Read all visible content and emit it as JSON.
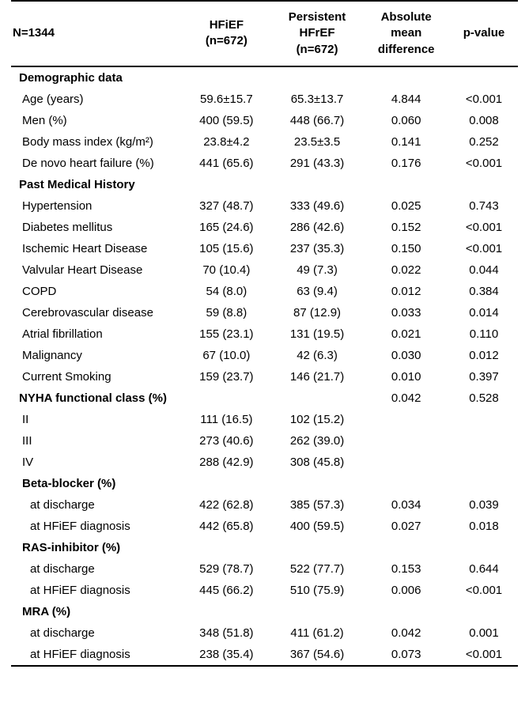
{
  "header": {
    "n_label": "N=1344",
    "col1": "HFiEF\n(n=672)",
    "col2": "Persistent\nHFrEF\n(n=672)",
    "col3": "Absolute\nmean\ndifference",
    "col4": "p-value"
  },
  "rows": [
    {
      "type": "section",
      "label": "Demographic data"
    },
    {
      "type": "data",
      "label": "Age (years)",
      "c1": "59.6±15.7",
      "c2": "65.3±13.7",
      "c3": "4.844",
      "c4": "<0.001"
    },
    {
      "type": "data",
      "label": "Men (%)",
      "c1": "400 (59.5)",
      "c2": "448 (66.7)",
      "c3": "0.060",
      "c4": "0.008"
    },
    {
      "type": "data",
      "label": "Body mass index (kg/m²)",
      "c1": "23.8±4.2",
      "c2": "23.5±3.5",
      "c3": "0.141",
      "c4": "0.252"
    },
    {
      "type": "data",
      "label": "De novo heart failure (%)",
      "c1": "441 (65.6)",
      "c2": "291 (43.3)",
      "c3": "0.176",
      "c4": "<0.001"
    },
    {
      "type": "section",
      "label": "Past Medical History"
    },
    {
      "type": "data",
      "label": "Hypertension",
      "c1": "327 (48.7)",
      "c2": "333 (49.6)",
      "c3": "0.025",
      "c4": "0.743"
    },
    {
      "type": "data",
      "label": "Diabetes mellitus",
      "c1": "165 (24.6)",
      "c2": "286 (42.6)",
      "c3": "0.152",
      "c4": "<0.001"
    },
    {
      "type": "data",
      "label": "Ischemic Heart Disease",
      "c1": "105 (15.6)",
      "c2": "237 (35.3)",
      "c3": "0.150",
      "c4": "<0.001"
    },
    {
      "type": "data",
      "label": "Valvular Heart Disease",
      "c1": "70 (10.4)",
      "c2": "49 (7.3)",
      "c3": "0.022",
      "c4": "0.044"
    },
    {
      "type": "data",
      "label": "COPD",
      "c1": "54 (8.0)",
      "c2": "63 (9.4)",
      "c3": "0.012",
      "c4": "0.384"
    },
    {
      "type": "data",
      "label": "Cerebrovascular disease",
      "c1": "59 (8.8)",
      "c2": "87 (12.9)",
      "c3": "0.033",
      "c4": "0.014"
    },
    {
      "type": "data",
      "label": "Atrial fibrillation",
      "c1": "155 (23.1)",
      "c2": "131 (19.5)",
      "c3": "0.021",
      "c4": "0.110"
    },
    {
      "type": "data",
      "label": "Malignancy",
      "c1": "67 (10.0)",
      "c2": "42 (6.3)",
      "c3": "0.030",
      "c4": "0.012"
    },
    {
      "type": "data",
      "label": "Current Smoking",
      "c1": "159 (23.7)",
      "c2": "146 (21.7)",
      "c3": "0.010",
      "c4": "0.397"
    },
    {
      "type": "section-data",
      "label": "NYHA functional class (%)",
      "c3": "0.042",
      "c4": "0.528"
    },
    {
      "type": "data",
      "label": "II",
      "c1": "111 (16.5)",
      "c2": "102 (15.2)",
      "c3": "",
      "c4": ""
    },
    {
      "type": "data",
      "label": "III",
      "c1": "273 (40.6)",
      "c2": "262 (39.0)",
      "c3": "",
      "c4": ""
    },
    {
      "type": "data",
      "label": "IV",
      "c1": "288 (42.9)",
      "c2": "308 (45.8)",
      "c3": "",
      "c4": ""
    },
    {
      "type": "section-sub",
      "label": "Beta-blocker (%)"
    },
    {
      "type": "data-indent",
      "label": "at discharge",
      "c1": "422 (62.8)",
      "c2": "385 (57.3)",
      "c3": "0.034",
      "c4": "0.039"
    },
    {
      "type": "data-indent",
      "label": "at HFiEF diagnosis",
      "c1": "442 (65.8)",
      "c2": "400 (59.5)",
      "c3": "0.027",
      "c4": "0.018"
    },
    {
      "type": "section-sub",
      "label": "RAS-inhibitor (%)"
    },
    {
      "type": "data-indent",
      "label": "at discharge",
      "c1": "529 (78.7)",
      "c2": "522 (77.7)",
      "c3": "0.153",
      "c4": "0.644"
    },
    {
      "type": "data-indent",
      "label": "at HFiEF diagnosis",
      "c1": "445 (66.2)",
      "c2": "510 (75.9)",
      "c3": "0.006",
      "c4": "<0.001"
    },
    {
      "type": "section-sub",
      "label": "MRA (%)"
    },
    {
      "type": "data-indent",
      "label": "at discharge",
      "c1": "348 (51.8)",
      "c2": "411 (61.2)",
      "c3": "0.042",
      "c4": "0.001"
    },
    {
      "type": "data-indent",
      "label": "at HFiEF diagnosis",
      "c1": "238 (35.4)",
      "c2": "367 (54.6)",
      "c3": "0.073",
      "c4": "<0.001",
      "last": true
    }
  ]
}
